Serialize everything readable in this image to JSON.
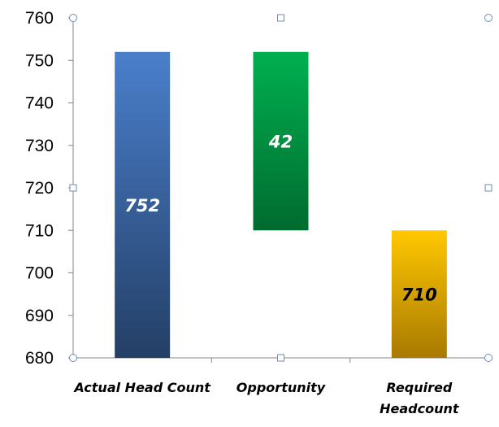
{
  "chart_data": {
    "type": "bar",
    "title": "",
    "xlabel": "",
    "ylabel": "",
    "ylim": [
      680,
      760
    ],
    "yticks": [
      680,
      690,
      700,
      710,
      720,
      730,
      740,
      750,
      760
    ],
    "grid": false,
    "legend": "none",
    "categories": [
      "Actual Head Count",
      "Opportunity",
      "Required Headcount"
    ],
    "bars": [
      {
        "category": "Actual Head Count",
        "label": "752",
        "start": 680,
        "end": 752,
        "color_top": "#4a7fcb",
        "color_bottom": "#243f66",
        "label_color": "#ffffff"
      },
      {
        "category": "Opportunity",
        "label": "42",
        "start": 710,
        "end": 752,
        "color_top": "#00b050",
        "color_bottom": "#006b2f",
        "label_color": "#ffffff"
      },
      {
        "category": "Required Headcount",
        "label": "710",
        "start": 680,
        "end": 710,
        "color_top": "#ffc800",
        "color_bottom": "#a87a00",
        "label_color": "#000000"
      }
    ]
  },
  "colors": {
    "axis": "#868686",
    "selection": "#6d8db5"
  }
}
